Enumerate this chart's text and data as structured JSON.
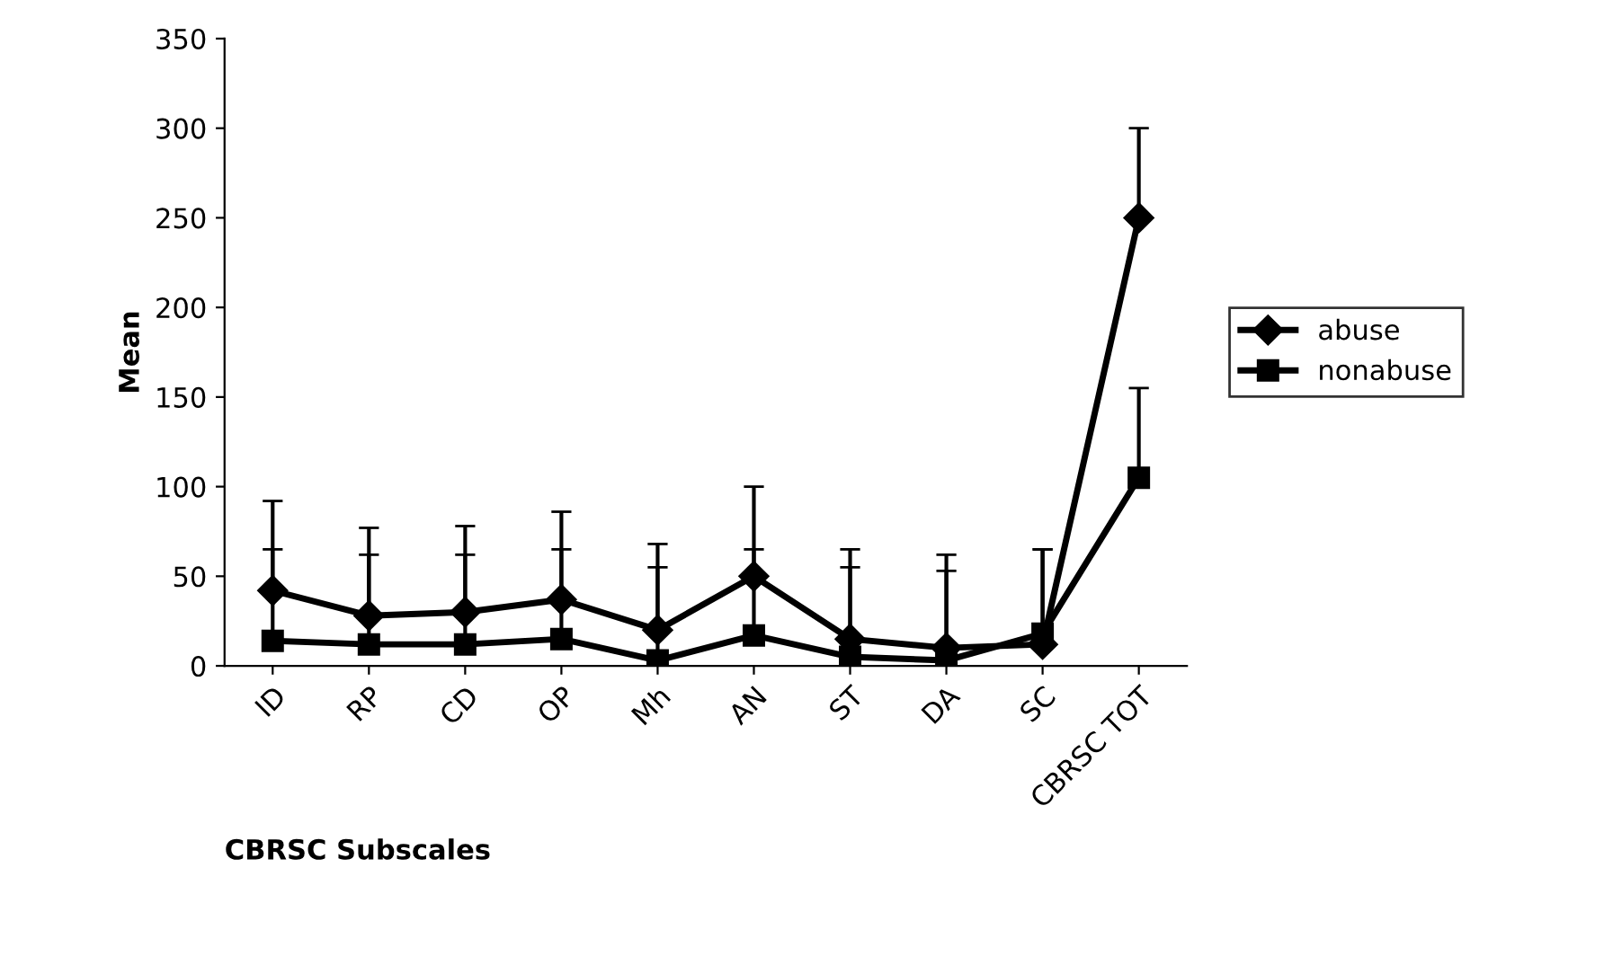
{
  "chart_data": {
    "type": "line",
    "xlabel": "CBRSC Subscales",
    "ylabel": "Mean",
    "categories": [
      "ID",
      "RP",
      "CD",
      "OP",
      "Mh",
      "AN",
      "ST",
      "DA",
      "SC",
      "CBRSC TOT"
    ],
    "series": [
      {
        "name": "abuse",
        "color": "#000000",
        "marker": "diamond",
        "values": [
          42,
          28,
          30,
          37,
          20,
          50,
          15,
          10,
          12,
          250
        ],
        "errors": [
          [
            42,
            92
          ],
          [
            28,
            77
          ],
          [
            30,
            78
          ],
          [
            37,
            86
          ],
          [
            20,
            68
          ],
          [
            50,
            100
          ],
          [
            15,
            65
          ],
          [
            10,
            62
          ],
          [
            12,
            65
          ],
          [
            250,
            300
          ]
        ]
      },
      {
        "name": "nonabuse",
        "color": "#000000",
        "marker": "square",
        "values": [
          14,
          12,
          12,
          15,
          3,
          17,
          5,
          3,
          18,
          105
        ],
        "errors": [
          [
            14,
            65
          ],
          [
            12,
            62
          ],
          [
            12,
            62
          ],
          [
            15,
            65
          ],
          [
            3,
            55
          ],
          [
            17,
            65
          ],
          [
            5,
            55
          ],
          [
            3,
            53
          ],
          [
            18,
            65
          ],
          [
            105,
            155
          ]
        ]
      }
    ],
    "ylim": [
      0,
      350
    ],
    "yticks": [
      0,
      50,
      100,
      150,
      200,
      250,
      300,
      350
    ],
    "grid": false,
    "legend": "right",
    "line_style": "solid"
  }
}
